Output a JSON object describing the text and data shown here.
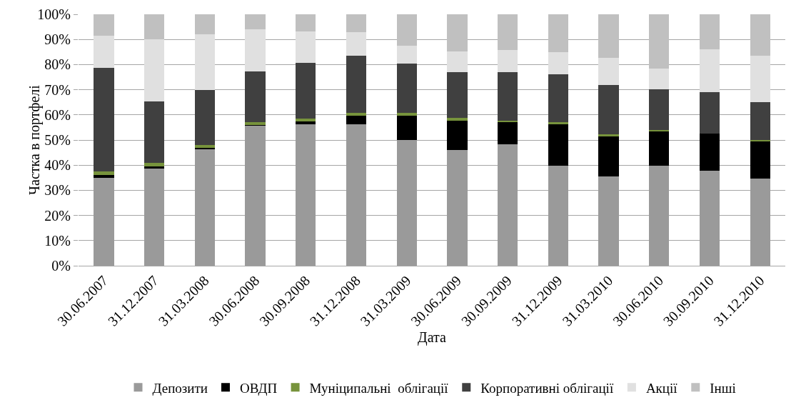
{
  "chart_data": {
    "type": "bar",
    "stacked": true,
    "xlabel": "Дата",
    "ylabel": "Частка в портфелі",
    "categories": [
      "30.06.2007",
      "31.12.2007",
      "31.03.2008",
      "30.06.2008",
      "30.09.2008",
      "31.12.2008",
      "31.03.2009",
      "30.06.2009",
      "30.09.2009",
      "31.12.2009",
      "31.03.2010",
      "30.06.2010",
      "30.09.2010",
      "31.12.2010"
    ],
    "series": [
      {
        "name": "Депозити",
        "color": "#9a9a9a",
        "values": [
          35,
          38.5,
          46.3,
          55.7,
          56.3,
          56.2,
          49.9,
          46.1,
          48.4,
          39.7,
          35.5,
          39.7,
          37.7,
          34.7
        ]
      },
      {
        "name": "ОВДП",
        "color": "#000000",
        "values": [
          1.2,
          1.1,
          0.6,
          0.2,
          1.2,
          3.4,
          9.9,
          11.5,
          8.6,
          16.5,
          16,
          13.7,
          15,
          14.9
        ]
      },
      {
        "name": "Муніципальні  облігації",
        "color": "#77933c",
        "values": [
          1.2,
          1.4,
          1.2,
          1.1,
          1,
          1.2,
          0.9,
          1.2,
          0.8,
          0.9,
          0.9,
          0.6,
          null,
          0.3
        ]
      },
      {
        "name": "Корпоративні облігації",
        "color": "#404040",
        "values": [
          41.3,
          24.3,
          21.9,
          20.2,
          22.3,
          22.8,
          19.8,
          18.3,
          19.3,
          18.9,
          19.5,
          16.3,
          16.4,
          15.3
        ]
      },
      {
        "name": "Акції",
        "color": "#e0e0e0",
        "values": [
          12.8,
          24.8,
          22,
          16.7,
          12.3,
          9.2,
          7,
          8,
          8.6,
          8.9,
          10.9,
          8,
          16.9,
          18.3
        ]
      },
      {
        "name": "Інші",
        "color": "#c0c0c0",
        "values": [
          8.5,
          9.9,
          8,
          6.1,
          6.9,
          7.2,
          12.5,
          14.9,
          14.3,
          15.1,
          17.2,
          21.7,
          14,
          16.5
        ]
      }
    ],
    "ylim": [
      0,
      100
    ],
    "yticks": [
      {
        "value": 0,
        "label": "0%"
      },
      {
        "value": 10,
        "label": "10%"
      },
      {
        "value": 20,
        "label": "20%"
      },
      {
        "value": 30,
        "label": "30%"
      },
      {
        "value": 40,
        "label": "40%"
      },
      {
        "value": 50,
        "label": "50%"
      },
      {
        "value": 60,
        "label": "60%"
      },
      {
        "value": 70,
        "label": "70%"
      },
      {
        "value": 80,
        "label": "80%"
      },
      {
        "value": 90,
        "label": "90%"
      },
      {
        "value": 100,
        "label": "100%"
      }
    ],
    "grid": "y",
    "legend": "bottom"
  }
}
